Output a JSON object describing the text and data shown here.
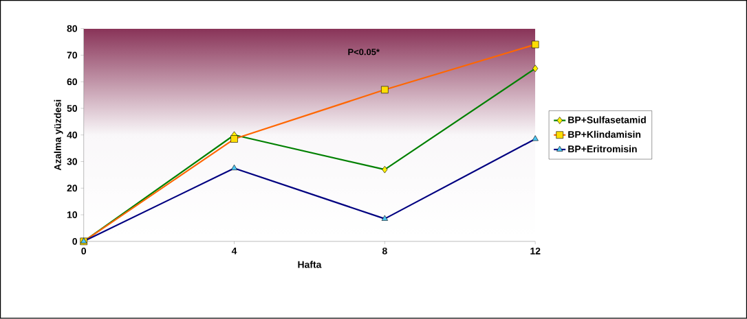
{
  "chart_data": {
    "type": "line",
    "xlabel": "Hafta",
    "ylabel": "Azalma yüzdesi",
    "x": [
      0,
      4,
      8,
      12
    ],
    "series": [
      {
        "name": "BP+Sulfasetamid",
        "color": "#008000",
        "marker": "diamond",
        "values": [
          0,
          40,
          27,
          65
        ]
      },
      {
        "name": "BP+Klindamisin",
        "color": "#ff6600",
        "marker": "square",
        "values": [
          0,
          38.5,
          57,
          74
        ]
      },
      {
        "name": "BP+Eritromisin",
        "color": "#000080",
        "marker": "triangle",
        "values": [
          0,
          27.5,
          8.5,
          38.5
        ]
      }
    ],
    "xlim": [
      0,
      12
    ],
    "xticks": [
      0,
      4,
      8,
      12
    ],
    "ylim": [
      0,
      80
    ],
    "yticks": [
      0,
      10,
      20,
      30,
      40,
      50,
      60,
      70,
      80
    ],
    "grid": false,
    "legend": "right",
    "line_style": "solid",
    "annotations": [
      "P<0.05*"
    ]
  }
}
